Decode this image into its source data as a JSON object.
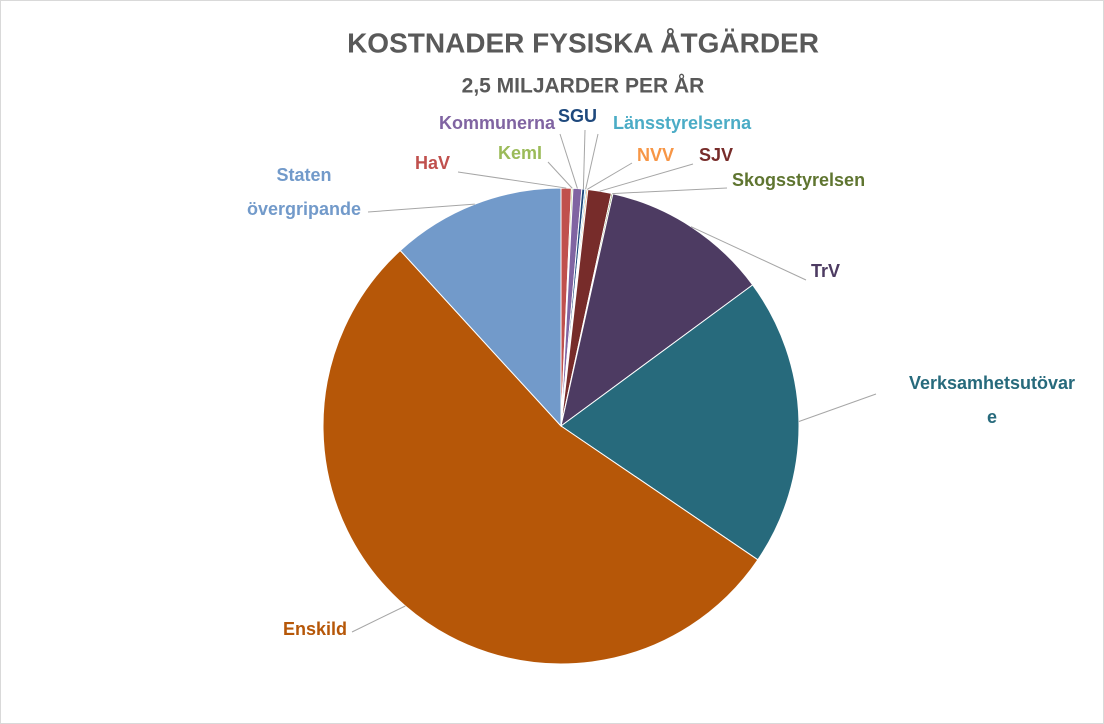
{
  "chart_data": {
    "type": "pie",
    "title": "KOSTNADER FYSISKA ÅTGÄRDER",
    "subtitle": "2,5 MILJARDER PER ÅR",
    "categories": [
      "HaV",
      "KemI",
      "Kommunerna",
      "SGU",
      "Länsstyrelserna",
      "NVV",
      "SJV",
      "Skogsstyrelsen",
      "TrV",
      "Verksamhetsutövare",
      "Enskild",
      "Staten övergripande"
    ],
    "values": [
      0.7,
      0.1,
      0.6,
      0.2,
      0.1,
      0.1,
      1.6,
      0.1,
      11.4,
      19.6,
      53.7,
      11.8
    ],
    "colors": [
      "#c0504d",
      "#9bbb59",
      "#8064a2",
      "#1f497d",
      "#4bacc6",
      "#f79646",
      "#772c2a",
      "#5f7530",
      "#4d3b62",
      "#276a7c",
      "#b65708",
      "#729aca"
    ]
  }
}
